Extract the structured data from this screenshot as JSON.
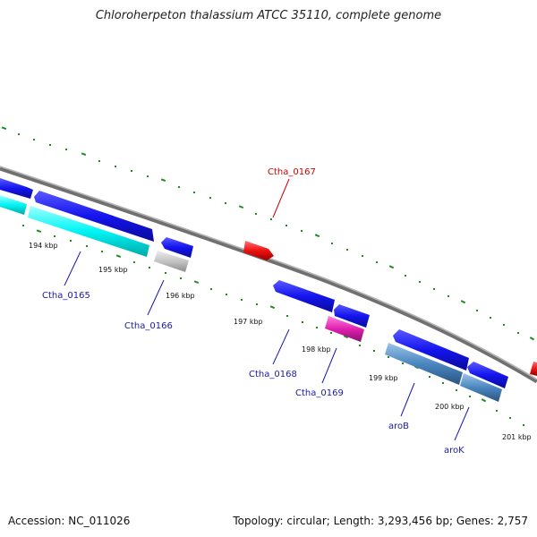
{
  "title": "Chloroherpeton thalassium ATCC 35110, complete genome",
  "footer": {
    "accession": "Accession: NC_011026",
    "summary": "Topology: circular; Length: 3,293,456 bp; Genes: 2,757"
  },
  "colors": {
    "backbone": "#8a8a8a",
    "tick": "#1e8c1e",
    "gene_blue": "#1010e8",
    "gene_cyan": "#00f0f0",
    "gene_gray": "#c0c0c0",
    "gene_red": "#ee1111",
    "gene_magenta": "#e020b0",
    "gene_steel": "#4a86c0",
    "label_blue": "#1a1aa8",
    "label_red": "#cc0000"
  },
  "scale_labels": [
    "194 kbp",
    "195 kbp",
    "196 kbp",
    "197 kbp",
    "198 kbp",
    "199 kbp",
    "200 kbp",
    "201 kbp"
  ],
  "gene_labels": [
    "Ctha_0165",
    "Ctha_0166",
    "Ctha_0167",
    "Ctha_0168",
    "Ctha_0169",
    "aroB",
    "aroK"
  ]
}
